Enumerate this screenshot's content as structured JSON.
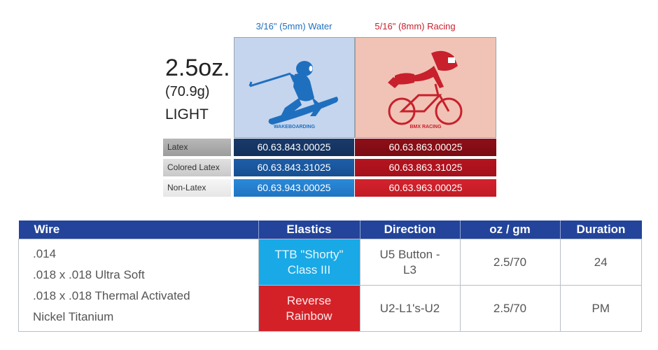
{
  "columns": {
    "water": {
      "label": "3/16\" (5mm) Water",
      "color": "#1f6fbf",
      "picture_label": "WAKEBOARDING"
    },
    "racing": {
      "label": "5/16\" (8mm) Racing",
      "color": "#c8202c",
      "picture_label": "BMX RACING"
    }
  },
  "weight": {
    "oz": "2.5oz.",
    "grams": "(70.9g)",
    "strength": "LIGHT"
  },
  "variants": [
    {
      "label": "Latex",
      "water_code": "60.63.843.00025",
      "racing_code": "60.63.863.00025"
    },
    {
      "label": "Colored Latex",
      "water_code": "60.63.843.31025",
      "racing_code": "60.63.863.31025"
    },
    {
      "label": "Non-Latex",
      "water_code": "60.63.943.00025",
      "racing_code": "60.63.963.00025"
    }
  ],
  "spec_table": {
    "headers": [
      "Wire",
      "Elastics",
      "Direction",
      "oz / gm",
      "Duration"
    ],
    "wires": [
      ".014",
      ".018 x .018 Ultra Soft",
      ".018 x .018 Thermal Activated",
      "Nickel Titanium"
    ],
    "rows": [
      {
        "elastic_line1": "TTB \"Shorty\"",
        "elastic_line2": "Class III",
        "elastic_color": "#19a9e6",
        "direction_line1": "U5 Button -",
        "direction_line2": "L3",
        "ozgm": "2.5/70",
        "duration": "24"
      },
      {
        "elastic_line1": "Reverse",
        "elastic_line2": "Rainbow",
        "elastic_color": "#d42128",
        "direction_line1": "U2-L1's-U2",
        "direction_line2": "",
        "ozgm": "2.5/70",
        "duration": "PM"
      }
    ]
  },
  "colors": {
    "header_blue": "#23449a",
    "water_bg": "#c5d5ee",
    "racing_bg": "#f0c3b6"
  }
}
